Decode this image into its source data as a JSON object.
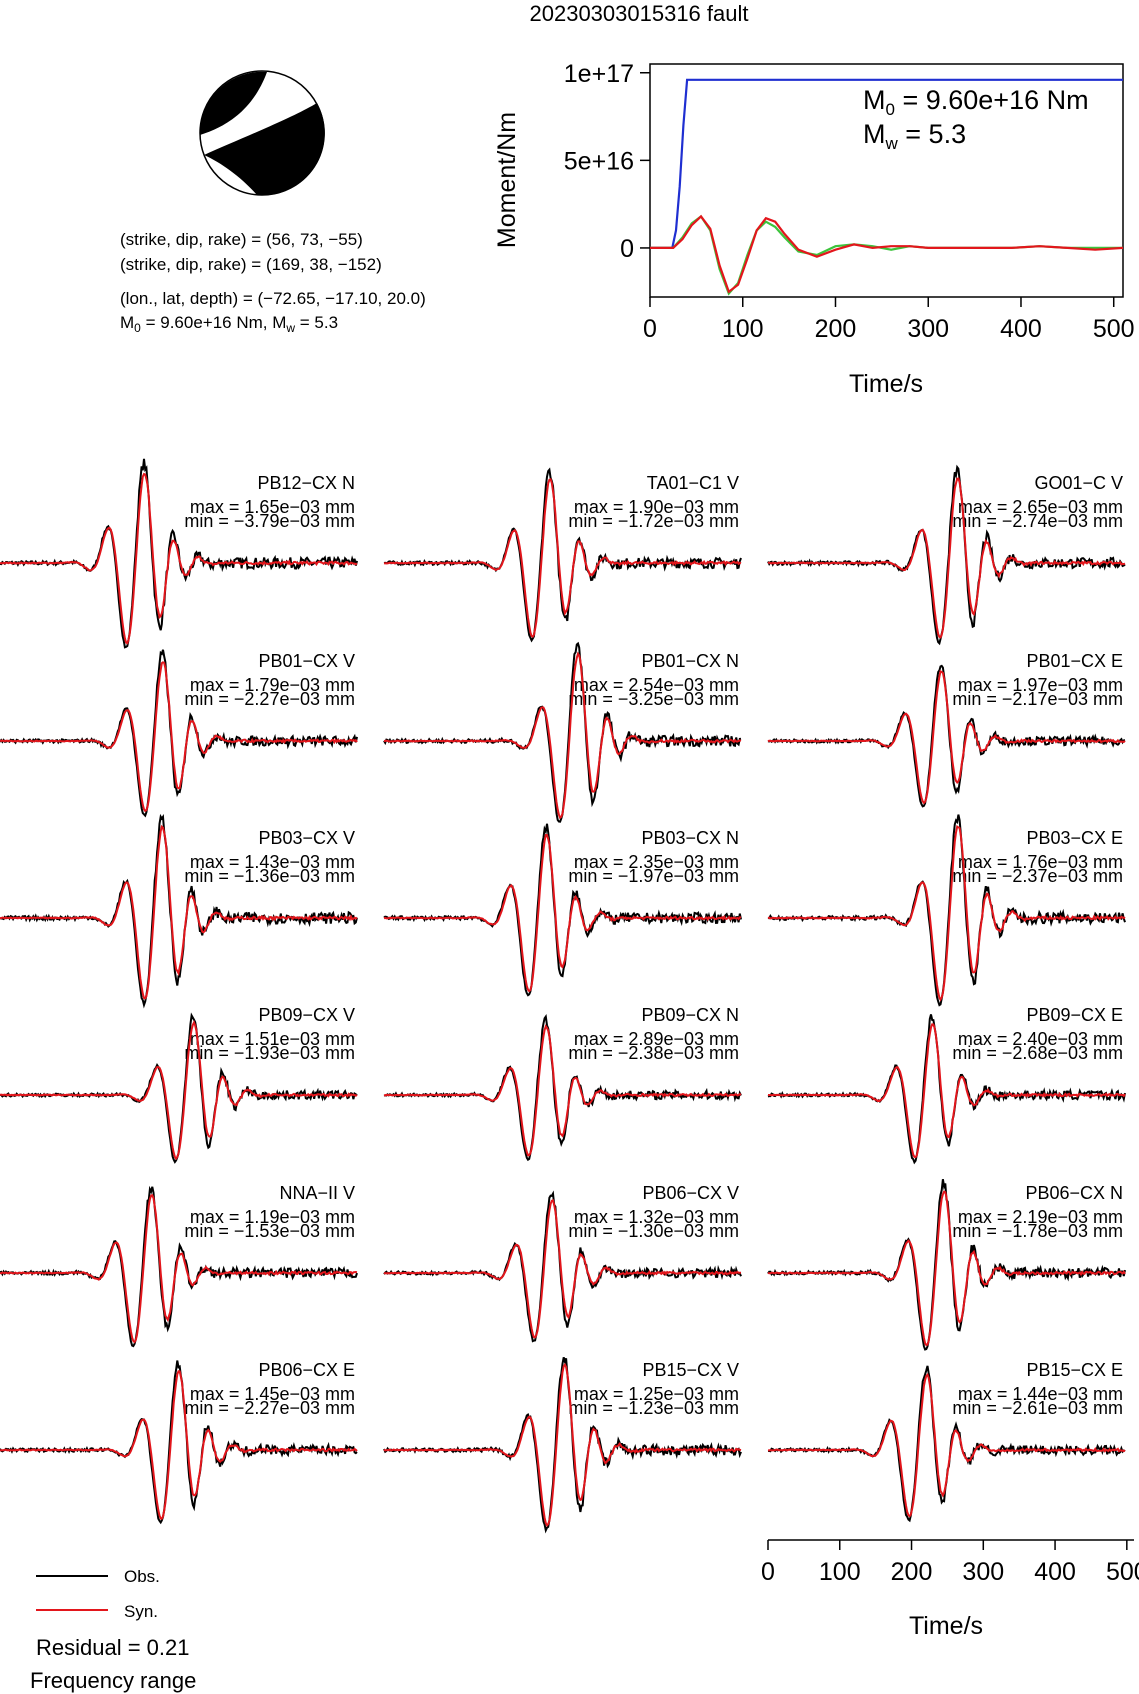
{
  "title": "20230303015316 fault",
  "colors": {
    "obs": "#000000",
    "syn": "#e3161c",
    "moment_curve": "#1f2fd1",
    "green_curve": "#3cc43c",
    "beachball": "#000000"
  },
  "mechanism": {
    "line1": "(strike, dip, rake) = (56, 73, −55)",
    "line2": "(strike, dip, rake) = (169, 38, −152)",
    "line3": "(lon., lat, depth) = (−72.65, −17.10, 20.0)",
    "line4_m0": "M",
    "line4_m0_sub": "0",
    "line4_m0_val": " = 9.60e+16 Nm, M",
    "line4_mw_sub": "w",
    "line4_mw_val": " = 5.3"
  },
  "chart_data": [
    {
      "type": "line",
      "title": "",
      "xlabel": "Time/s",
      "ylabel": "Moment/Nm",
      "xlim": [
        0,
        510
      ],
      "ylim": [
        -2.8e+16,
        1.05e+17
      ],
      "xticks": [
        "0",
        "100",
        "200",
        "300",
        "400",
        "500"
      ],
      "yticks": [
        "0",
        "5e+16",
        "1e+17"
      ],
      "annotation_m0": {
        "sym": "M",
        "sub": "0",
        "text": " = 9.60e+16 Nm"
      },
      "annotation_mw": {
        "sym": "M",
        "sub": "w",
        "text": " = 5.3"
      },
      "series": [
        {
          "name": "",
          "color": "#1f2fd1",
          "x": [
            0,
            24,
            28,
            32,
            36,
            40,
            44,
            510
          ],
          "y": [
            0,
            0,
            1e+16,
            3.5e+16,
            7e+16,
            9.6e+16,
            9.6e+16,
            9.6e+16
          ]
        },
        {
          "name": "",
          "color": "#3cc43c",
          "x": [
            0,
            25,
            35,
            45,
            55,
            65,
            75,
            85,
            95,
            105,
            115,
            125,
            135,
            145,
            160,
            180,
            200,
            220,
            240,
            260,
            280,
            300,
            330,
            360,
            390,
            420,
            450,
            480,
            510
          ],
          "y": [
            0,
            0,
            6000000000000000.0,
            1.4e+16,
            1.8e+16,
            1e+16,
            -1.2e+16,
            -2.6e+16,
            -2e+16,
            -4000000000000000.0,
            1e+16,
            1.5e+16,
            1.2e+16,
            6000000000000000.0,
            -2000000000000000.0,
            -4000000000000000.0,
            1000000000000000.0,
            2000000000000000.0,
            1000000000000000.0,
            -1000000000000000.0,
            1000000000000000.0,
            0.0,
            0.0,
            0.0,
            0.0,
            1000000000000000.0,
            0.0,
            0.0,
            0.0
          ]
        },
        {
          "name": "",
          "color": "#e3161c",
          "x": [
            0,
            25,
            35,
            45,
            55,
            65,
            75,
            85,
            95,
            105,
            115,
            125,
            135,
            145,
            160,
            180,
            200,
            220,
            240,
            260,
            280,
            300,
            330,
            360,
            390,
            420,
            450,
            480,
            510
          ],
          "y": [
            0,
            0,
            5000000000000000.0,
            1.3e+16,
            1.8e+16,
            1.1e+16,
            -1e+16,
            -2.5e+16,
            -2.1e+16,
            -6000000000000000.0,
            1e+16,
            1.7e+16,
            1.5e+16,
            8000000000000000.0,
            -1000000000000000.0,
            -5000000000000000.0,
            -1000000000000000.0,
            2000000000000000.0,
            0.0,
            1000000000000000.0,
            1000000000000000.0,
            0.0,
            0.0,
            0.0,
            0.0,
            1000000000000000.0,
            0.0,
            -1000000000000000.0,
            0.0
          ]
        }
      ]
    },
    {
      "type": "line",
      "title": "Waveform comparison",
      "xlabel": "Time/s",
      "xlim": [
        0,
        510
      ],
      "xticks": [
        "0",
        "100",
        "200",
        "300",
        "400",
        "500"
      ],
      "stations": [
        {
          "name": "PB12−CX N",
          "max": "max = 1.65e−03 mm",
          "min": "min = −3.79e−03 mm"
        },
        {
          "name": "TA01−C1 V",
          "max": "max = 1.90e−03 mm",
          "min": "min = −1.72e−03 mm"
        },
        {
          "name": "GO01−C V",
          "max": "max = 2.65e−03 mm",
          "min": "min = −2.74e−03 mm"
        },
        {
          "name": "PB01−CX V",
          "max": "max = 1.79e−03 mm",
          "min": "min = −2.27e−03 mm"
        },
        {
          "name": "PB01−CX N",
          "max": "max = 2.54e−03 mm",
          "min": "min = −3.25e−03 mm"
        },
        {
          "name": "PB01−CX E",
          "max": "max = 1.97e−03 mm",
          "min": "min = −2.17e−03 mm"
        },
        {
          "name": "PB03−CX V",
          "max": "max = 1.43e−03 mm",
          "min": "min = −1.36e−03 mm"
        },
        {
          "name": "PB03−CX N",
          "max": "max = 2.35e−03 mm",
          "min": "min = −1.97e−03 mm"
        },
        {
          "name": "PB03−CX E",
          "max": "max = 1.76e−03 mm",
          "min": "min = −2.37e−03 mm"
        },
        {
          "name": "PB09−CX V",
          "max": "max = 1.51e−03 mm",
          "min": "min = −1.93e−03 mm"
        },
        {
          "name": "PB09−CX N",
          "max": "max = 2.89e−03 mm",
          "min": "min = −2.38e−03 mm"
        },
        {
          "name": "PB09−CX E",
          "max": "max = 2.40e−03 mm",
          "min": "min = −2.68e−03 mm"
        },
        {
          "name": "NNA−II V",
          "max": "max = 1.19e−03 mm",
          "min": "min = −1.53e−03 mm"
        },
        {
          "name": "PB06−CX V",
          "max": "max = 1.32e−03 mm",
          "min": "min = −1.30e−03 mm"
        },
        {
          "name": "PB06−CX N",
          "max": "max = 2.19e−03 mm",
          "min": "min = −1.78e−03 mm"
        },
        {
          "name": "PB06−CX E",
          "max": "max = 1.45e−03 mm",
          "min": "min = −2.27e−03 mm"
        },
        {
          "name": "PB15−CX V",
          "max": "max = 1.25e−03 mm",
          "min": "min = −1.23e−03 mm"
        },
        {
          "name": "PB15−CX E",
          "max": "max = 1.44e−03 mm",
          "min": "min = −2.61e−03 mm"
        }
      ]
    }
  ],
  "legend": {
    "obs_label": "Obs.",
    "syn_label": "Syn."
  },
  "residual": "Residual = 0.21",
  "frequency_range": "Frequency range"
}
